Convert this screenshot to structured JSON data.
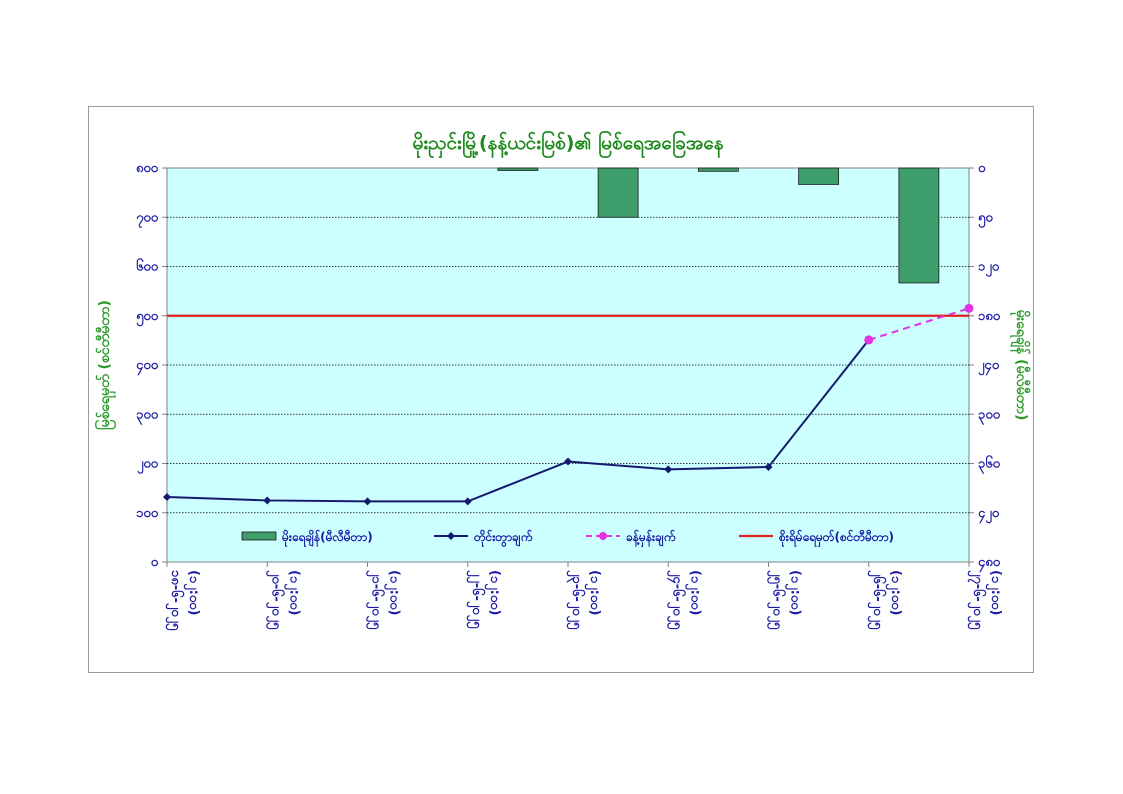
{
  "chart_data": {
    "type": "line",
    "title": "မိုးညှင်းမြို့(နန့်ယင်းမြစ်)၏ မြစ်ရေအခြေအနေ",
    "ylabel": "မြစ်ရေမှတ် (စင်တီမီတာ)",
    "y2label": "မိုးရေချိန် (မီလီမီတာ)",
    "y_ticks": [
      "၀",
      "၁၀၀",
      "၂၀၀",
      "၃၀၀",
      "၄၀၀",
      "၅၀၀",
      "၆၀၀",
      "၇၀၀",
      "၈၀၀"
    ],
    "y2_ticks": [
      "၀",
      "၅၀",
      "၁၂၀",
      "၁၈၀",
      "၂၄၀",
      "၃၀၀",
      "၃၆၀",
      "၄၂၀",
      "၄၈၀"
    ],
    "ylim": [
      0,
      800
    ],
    "y2lim": [
      0,
      480
    ],
    "y2_inverted": true,
    "categories": [
      [
        "၁၈-၆-၂၀၂၅",
        "(၁၂:၀၀)"
      ],
      [
        "၂၀-၆-၂၀၂၅",
        "(၁၂:၀၀)"
      ],
      [
        "၂၁-၆-၂၀၂၅",
        "(၁၂:၀၀)"
      ],
      [
        "၂၂-၆-၂၀၂၅",
        "(၁၂:၀၀)"
      ],
      [
        "၂၃-၆-၂၀၂၅",
        "(၁၂:၀၀)"
      ],
      [
        "၂၄-၆-၂၀၂၅",
        "(၁၂:၀၀)"
      ],
      [
        "၂၅-၆-၂၀၂၅",
        "(၁၂:၀၀)"
      ],
      [
        "၂၆-၆-၂၀၂၅",
        "(၁၂:၀၀)"
      ],
      [
        "၂၇-၆-၂၀၂၅",
        "(၁၂:၀၀)"
      ]
    ],
    "series": [
      {
        "name": "မိုးရေချိန်(မီလီမီတာ)",
        "kind": "bar",
        "axis": "y2",
        "color": "#3d9e6b",
        "values": [
          null,
          null,
          null,
          3,
          60,
          4,
          20,
          140,
          null
        ]
      },
      {
        "name": "တိုင်းတွာချက်",
        "kind": "line",
        "axis": "y",
        "color": "#141a6e",
        "values": [
          132,
          125,
          123,
          123,
          204,
          188,
          193,
          451,
          null
        ]
      },
      {
        "name": "ခန့်မှန်းချက်",
        "kind": "dashed",
        "axis": "y",
        "color": "#e232e2",
        "values": [
          null,
          null,
          null,
          null,
          null,
          null,
          null,
          451,
          515
        ]
      }
    ],
    "reference_line": {
      "name": "စိုးရိမ်ရေမှတ်(စင်တီမီတာ)",
      "value": 500,
      "color": "#e02020"
    },
    "grid": true,
    "legend_position": "bottom-inside"
  }
}
